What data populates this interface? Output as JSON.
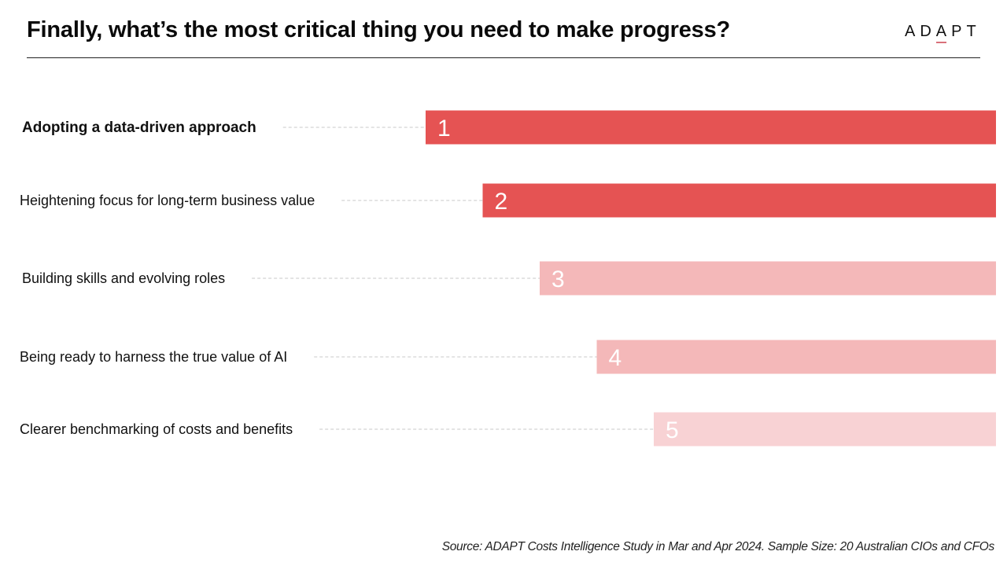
{
  "header": {
    "title": "Finally, what’s the most critical thing you need to make progress?",
    "logo": {
      "prefix": "AD",
      "accent": "A",
      "suffix": "PT",
      "accent_color": "#d9707a"
    }
  },
  "chart_data": {
    "type": "bar",
    "orientation": "horizontal",
    "title": "Finally, what’s the most critical thing you need to make progress?",
    "xlabel": "",
    "ylabel": "",
    "grid": false,
    "legend": "none",
    "categories": [
      "Adopting a data-driven approach",
      "Heightening focus for long-term business value",
      "Building skills and evolving roles",
      "Being ready to harness the true value of AI",
      "Clearer benchmarking of costs and benefits"
    ],
    "ranks": [
      1,
      2,
      3,
      4,
      5
    ],
    "data_labels": [
      "1",
      "2",
      "3",
      "4",
      "5"
    ],
    "values_relative": [
      1.0,
      0.9,
      0.8,
      0.7,
      0.6
    ],
    "bold_category_index": 0,
    "colors": [
      "#e55353",
      "#e55353",
      "#f4b8b9",
      "#f4b8b9",
      "#f8d2d4"
    ]
  },
  "footer": {
    "source": "Source: ADAPT Costs Intelligence Study in Mar and Apr 2024. Sample Size: 20 Australian CIOs and CFOs"
  }
}
